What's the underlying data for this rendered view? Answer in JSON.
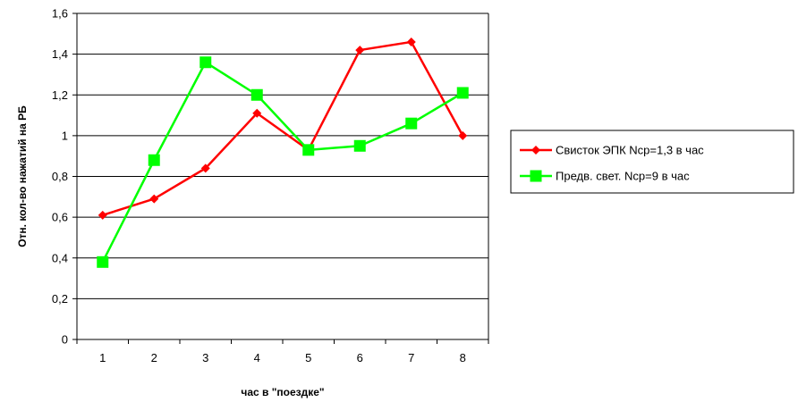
{
  "chart_data": {
    "type": "line",
    "xlabel": "час в \"поездке\"",
    "ylabel": "Отн. кол-во нажатий на РБ",
    "categories": [
      "1",
      "2",
      "3",
      "4",
      "5",
      "6",
      "7",
      "8"
    ],
    "ylim": [
      0,
      1.6
    ],
    "y_ticks": [
      "0",
      "0,2",
      "0,4",
      "0,6",
      "0,8",
      "1",
      "1,2",
      "1,4",
      "1,6"
    ],
    "grid": "horizontal",
    "legend_position": "right",
    "series": [
      {
        "name": "Свисток ЭПК Nср=1,3 в час",
        "color": "#ff0000",
        "marker": "diamond",
        "values": [
          0.61,
          0.69,
          0.84,
          1.11,
          0.93,
          1.42,
          1.46,
          1.0
        ]
      },
      {
        "name": "Предв. свет. Nср=9 в час",
        "color": "#00ff00",
        "marker": "square",
        "values": [
          0.38,
          0.88,
          1.36,
          1.2,
          0.93,
          0.95,
          1.06,
          1.21
        ]
      }
    ]
  }
}
